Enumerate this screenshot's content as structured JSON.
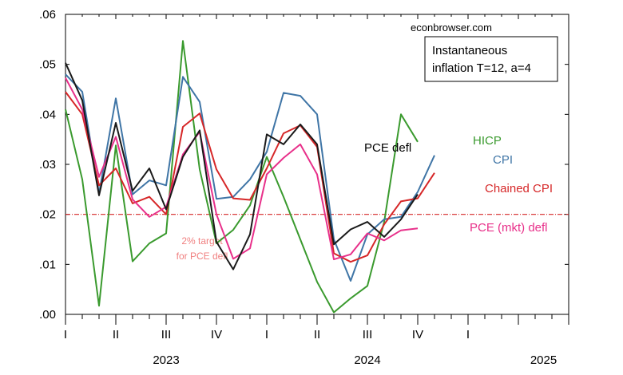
{
  "chart_data": {
    "type": "line",
    "source": "econbrowser.com",
    "legend_box": [
      "Instantaneous",
      "inflation T=12, a=4"
    ],
    "target_line": {
      "value": 0.02,
      "label": [
        "2% target",
        "for PCE defl"
      ],
      "color": "#d62728"
    },
    "x_start": "2023-01",
    "x_ticks": [
      "I",
      "II",
      "III",
      "IV",
      "I",
      "II",
      "III",
      "IV",
      "I"
    ],
    "year_labels": [
      "2023",
      "2024",
      "2025"
    ],
    "ylim": [
      0.0,
      0.06
    ],
    "yticks": [
      {
        "value": 0.0,
        "label": ".00"
      },
      {
        "value": 0.01,
        "label": ".01"
      },
      {
        "value": 0.02,
        "label": ".02"
      },
      {
        "value": 0.03,
        "label": ".03"
      },
      {
        "value": 0.04,
        "label": ".04"
      },
      {
        "value": 0.05,
        "label": ".05"
      },
      {
        "value": 0.06,
        "label": ".06"
      }
    ],
    "series": [
      {
        "name": "HICP",
        "color": "#3a9a2e",
        "label_pos": "right-upper",
        "values": [
          0.041,
          0.027,
          0.0017,
          0.0338,
          0.0106,
          0.0142,
          0.0162,
          0.0547,
          0.029,
          0.0142,
          0.0169,
          0.0218,
          0.0315,
          0.0235,
          0.015,
          0.0065,
          0.0004,
          0.0032,
          0.0057,
          0.0185,
          0.04,
          0.0345
        ]
      },
      {
        "name": "CPI",
        "color": "#3f75a6",
        "label_pos": "right",
        "values": [
          0.048,
          0.0445,
          0.0242,
          0.0432,
          0.024,
          0.0268,
          0.0258,
          0.0475,
          0.0425,
          0.0231,
          0.0235,
          0.027,
          0.0325,
          0.0443,
          0.0437,
          0.04,
          0.015,
          0.0067,
          0.016,
          0.019,
          0.0195,
          0.0245,
          0.0318
        ]
      },
      {
        "name": "Chained CPI",
        "color": "#d62728",
        "label_pos": "right",
        "values": [
          0.0445,
          0.04,
          0.0258,
          0.0292,
          0.0222,
          0.0235,
          0.02,
          0.0375,
          0.0402,
          0.029,
          0.0232,
          0.0229,
          0.0292,
          0.0362,
          0.0378,
          0.0335,
          0.0122,
          0.0105,
          0.0118,
          0.018,
          0.0226,
          0.0232,
          0.0283
        ]
      },
      {
        "name": "PCE defl",
        "color": "#1a1a1a",
        "label_pos": "upper",
        "values": [
          0.0503,
          0.0428,
          0.0238,
          0.0383,
          0.0247,
          0.0292,
          0.021,
          0.0315,
          0.0368,
          0.0145,
          0.009,
          0.016,
          0.036,
          0.034,
          0.038,
          0.034,
          0.014,
          0.017,
          0.0185,
          0.0155,
          0.019,
          0.024
        ]
      },
      {
        "name": "PCE (mkt) defl",
        "color": "#e8308a",
        "label_pos": "right-lower",
        "values": [
          0.0473,
          0.041,
          0.0275,
          0.0355,
          0.023,
          0.0195,
          0.0215,
          0.032,
          0.0365,
          0.02,
          0.0111,
          0.0132,
          0.028,
          0.0313,
          0.034,
          0.028,
          0.011,
          0.012,
          0.0162,
          0.0148,
          0.0168,
          0.0172
        ]
      }
    ]
  }
}
